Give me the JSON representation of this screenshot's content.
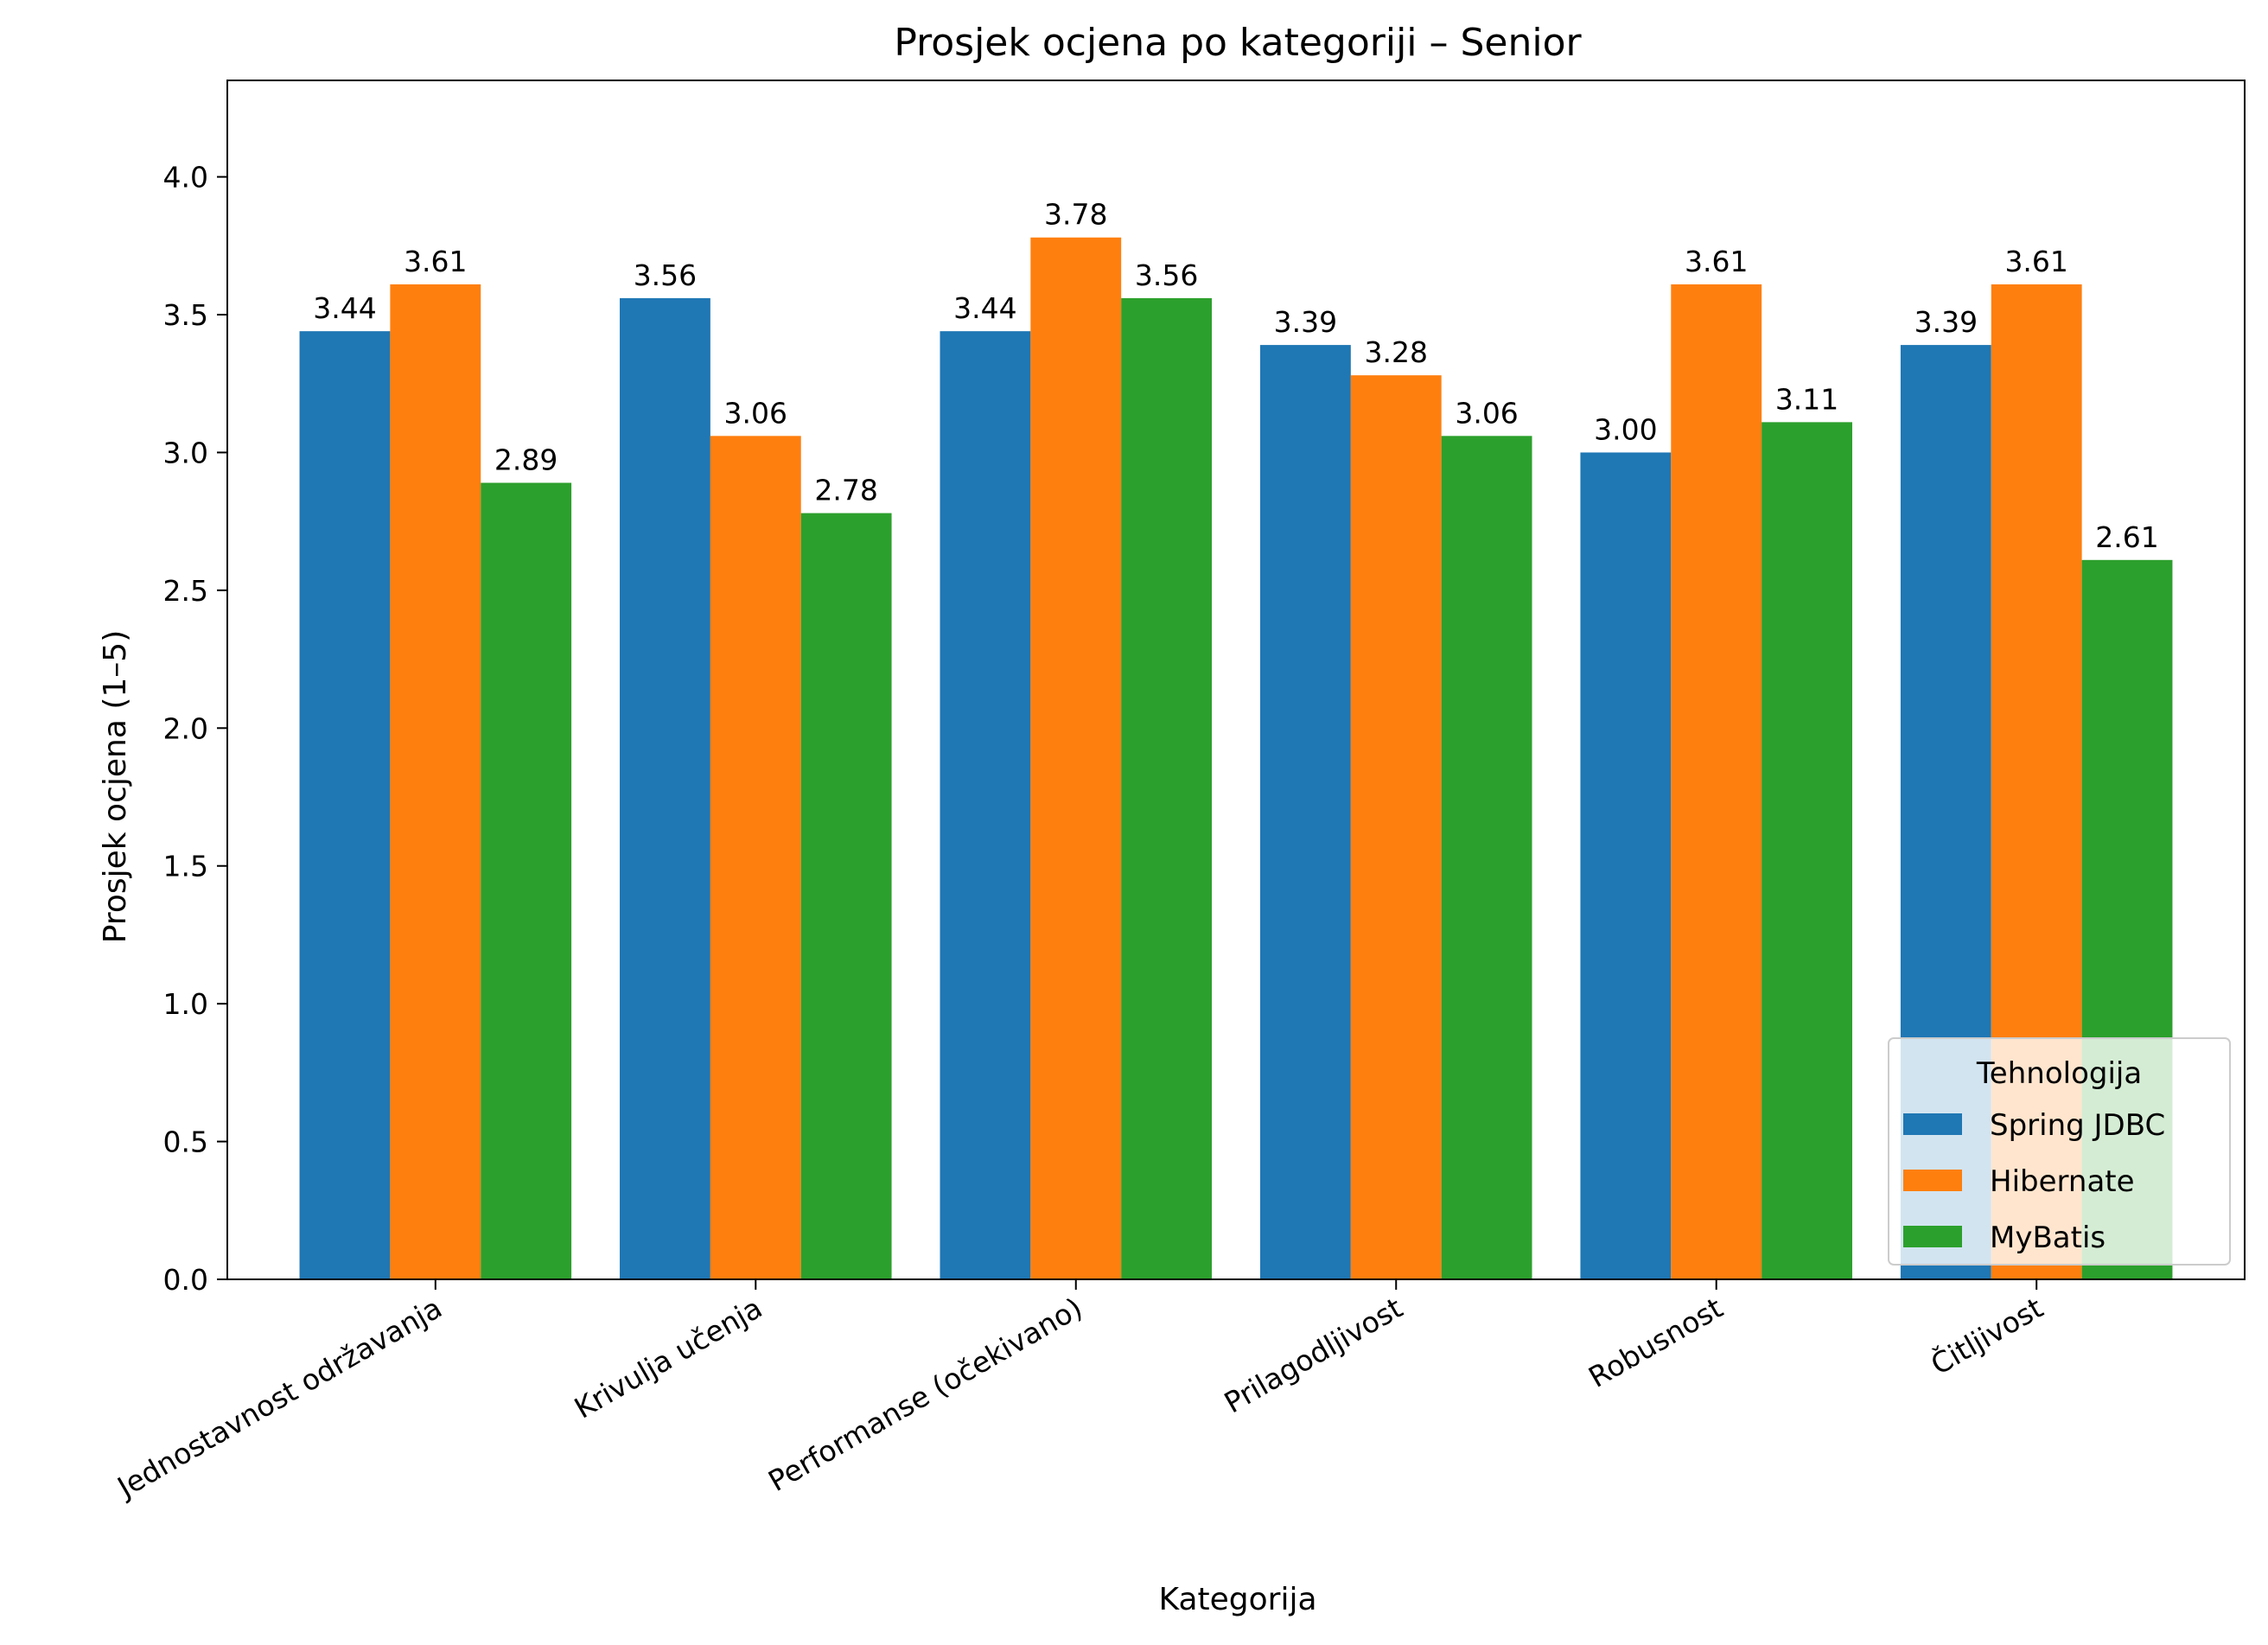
{
  "chart_data": {
    "type": "bar",
    "title": "Prosjek ocjena po kategoriji – Senior",
    "xlabel": "Kategorija",
    "ylabel": "Prosjek ocjena (1–5)",
    "ylim": [
      0,
      4.35
    ],
    "yticks": [
      0.0,
      0.5,
      1.0,
      1.5,
      2.0,
      2.5,
      3.0,
      3.5,
      4.0
    ],
    "ytick_labels": [
      "0.0",
      "0.5",
      "1.0",
      "1.5",
      "2.0",
      "2.5",
      "3.0",
      "3.5",
      "4.0"
    ],
    "grid": false,
    "categories": [
      "Jednostavnost održavanja",
      "Krivulja učenja",
      "Performanse (očekivano)",
      "Prilagodljivost",
      "Robusnost",
      "Čitljivost"
    ],
    "series": [
      {
        "name": "Spring JDBC",
        "color": "#1f77b4",
        "values": [
          3.44,
          3.56,
          3.44,
          3.39,
          3.0,
          3.39
        ],
        "labels": [
          "3.44",
          "3.56",
          "3.44",
          "3.39",
          "3.00",
          "3.39"
        ]
      },
      {
        "name": "Hibernate",
        "color": "#ff7f0e",
        "values": [
          3.61,
          3.06,
          3.78,
          3.28,
          3.61,
          3.61
        ],
        "labels": [
          "3.61",
          "3.06",
          "3.78",
          "3.28",
          "3.61",
          "3.61"
        ]
      },
      {
        "name": "MyBatis",
        "color": "#2ca02c",
        "values": [
          2.89,
          2.78,
          3.56,
          3.06,
          3.11,
          2.61
        ],
        "labels": [
          "2.89",
          "2.78",
          "3.56",
          "3.06",
          "3.11",
          "2.61"
        ]
      }
    ],
    "legend": {
      "title": "Tehnologija",
      "position": "lower-right"
    }
  }
}
